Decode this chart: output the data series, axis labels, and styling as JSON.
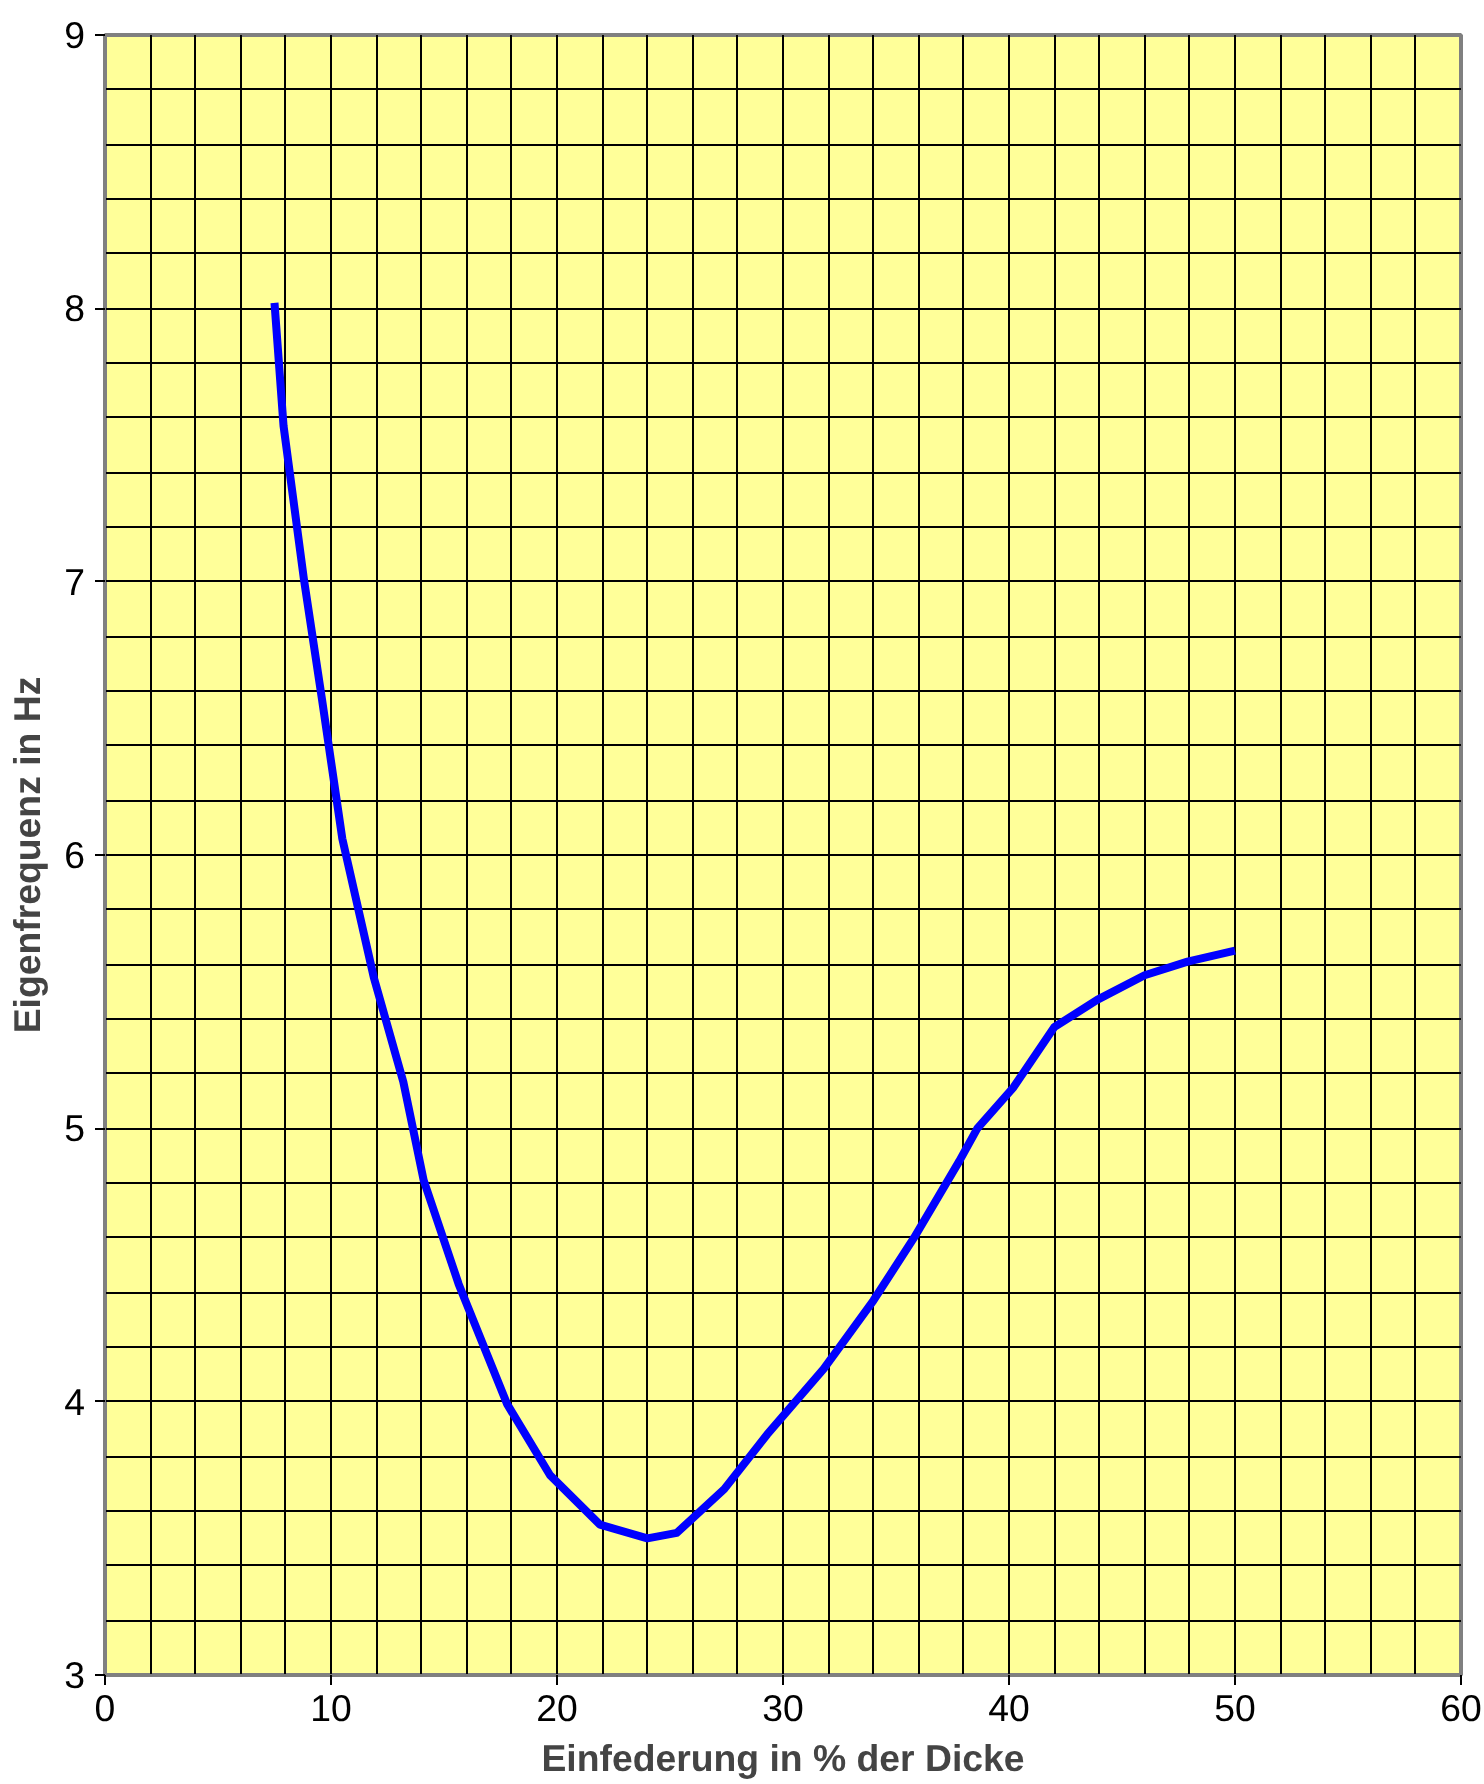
{
  "chart_data": {
    "type": "line",
    "xlabel": "Einfederung in % der Dicke",
    "ylabel": "Eigenfrequenz in Hz",
    "xlim": [
      0,
      60
    ],
    "ylim": [
      3,
      9
    ],
    "xticks": [
      0,
      {
        "value": 2,
        "label": null
      },
      {
        "value": 4,
        "label": null
      },
      {
        "value": 6,
        "label": null
      },
      {
        "value": 8,
        "label": null
      },
      10,
      {
        "value": 12,
        "label": null
      },
      {
        "value": 14,
        "label": null
      },
      {
        "value": 16,
        "label": null
      },
      {
        "value": 18,
        "label": null
      },
      20,
      {
        "value": 22,
        "label": null
      },
      {
        "value": 24,
        "label": null
      },
      {
        "value": 26,
        "label": null
      },
      {
        "value": 28,
        "label": null
      },
      30,
      {
        "value": 32,
        "label": null
      },
      {
        "value": 34,
        "label": null
      },
      {
        "value": 36,
        "label": null
      },
      {
        "value": 38,
        "label": null
      },
      40,
      {
        "value": 42,
        "label": null
      },
      {
        "value": 44,
        "label": null
      },
      {
        "value": 46,
        "label": null
      },
      {
        "value": 48,
        "label": null
      },
      50,
      {
        "value": 52,
        "label": null
      },
      {
        "value": 54,
        "label": null
      },
      {
        "value": 56,
        "label": null
      },
      {
        "value": 58,
        "label": null
      },
      60
    ],
    "yticks": [
      3,
      {
        "value": 3.2,
        "label": null
      },
      {
        "value": 3.4,
        "label": null
      },
      {
        "value": 3.6,
        "label": null
      },
      {
        "value": 3.8,
        "label": null
      },
      4,
      {
        "value": 4.2,
        "label": null
      },
      {
        "value": 4.4,
        "label": null
      },
      {
        "value": 4.6,
        "label": null
      },
      {
        "value": 4.8,
        "label": null
      },
      5,
      {
        "value": 5.2,
        "label": null
      },
      {
        "value": 5.4,
        "label": null
      },
      {
        "value": 5.6,
        "label": null
      },
      {
        "value": 5.8,
        "label": null
      },
      6,
      {
        "value": 6.2,
        "label": null
      },
      {
        "value": 6.4,
        "label": null
      },
      {
        "value": 6.6,
        "label": null
      },
      {
        "value": 6.8,
        "label": null
      },
      7,
      {
        "value": 7.2,
        "label": null
      },
      {
        "value": 7.4,
        "label": null
      },
      {
        "value": 7.6,
        "label": null
      },
      {
        "value": 7.8,
        "label": null
      },
      8,
      {
        "value": 8.2,
        "label": null
      },
      {
        "value": 8.4,
        "label": null
      },
      {
        "value": 8.6,
        "label": null
      },
      {
        "value": 8.8,
        "label": null
      },
      9
    ],
    "grid": true,
    "marker": "none",
    "line_style": "solid",
    "x": [
      7.5,
      7.9,
      8.8,
      9.6,
      10.5,
      11.9,
      13.2,
      14.1,
      15.65,
      17.8,
      19.7,
      21.9,
      24.0,
      25.3,
      27.4,
      29.3,
      31.8,
      34.0,
      35.8,
      37.8,
      38.6,
      40.2,
      42.0,
      43.9,
      46.0,
      47.9,
      50.0
    ],
    "series": [
      {
        "color": "#0000ff",
        "values": [
          8.02,
          7.57,
          7.01,
          6.57,
          6.06,
          5.55,
          5.17,
          4.81,
          4.43,
          3.99,
          3.73,
          3.55,
          3.5,
          3.52,
          3.68,
          3.88,
          4.12,
          4.37,
          4.6,
          4.88,
          5.0,
          5.15,
          5.37,
          5.47,
          5.56,
          5.61,
          5.65
        ]
      }
    ]
  }
}
